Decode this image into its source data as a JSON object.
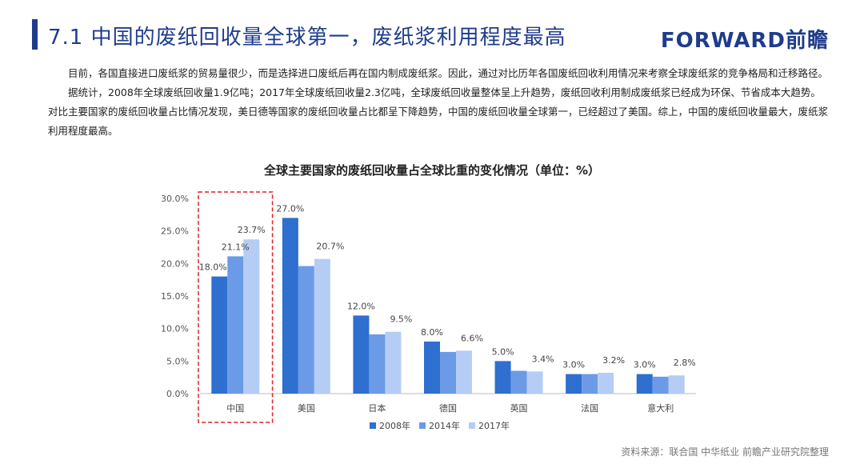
{
  "header": {
    "title": "7.1 中国的废纸回收量全球第一，废纸浆利用程度最高",
    "logo_text": "FORWARD前瞻"
  },
  "paragraphs": [
    "目前，各国直接进口废纸浆的贸易量很少，而是选择进口废纸后再在国内制成废纸浆。因此，通过对比历年各国废纸回收利用情况来考察全球废纸浆的竞争格局和迁移路径。",
    "据统计，2008年全球废纸回收量1.9亿吨；2017年全球废纸回收量2.3亿吨，全球废纸回收量整体呈上升趋势，废纸回收利用制成废纸浆已经成为环保、节省成本大趋势。对比主要国家的废纸回收量占比情况发现，美日德等国家的废纸回收量占比都呈下降趋势，中国的废纸回收量全球第一，已经超过了美国。综上，中国的废纸回收量最大，废纸浆利用程度最高。"
  ],
  "chart_data": {
    "type": "bar",
    "title": "全球主要国家的废纸回收量占全球比重的变化情况（单位：%）",
    "categories": [
      "中国",
      "美国",
      "日本",
      "德国",
      "英国",
      "法国",
      "意大利"
    ],
    "series": [
      {
        "name": "2008年",
        "values": [
          18.0,
          27.0,
          12.0,
          8.0,
          5.0,
          3.0,
          3.0
        ],
        "color": "#2e6fd0"
      },
      {
        "name": "2014年",
        "values": [
          21.1,
          19.6,
          9.1,
          6.4,
          3.5,
          3.0,
          2.6
        ],
        "color": "#6b9be6"
      },
      {
        "name": "2017年",
        "values": [
          23.7,
          20.7,
          9.5,
          6.6,
          3.4,
          3.2,
          2.8
        ],
        "color": "#b5cdf5"
      }
    ],
    "data_labels": [
      [
        "18.0%",
        "21.1%",
        "23.7%"
      ],
      [
        "27.0%",
        "",
        "20.7%"
      ],
      [
        "12.0%",
        "",
        "9.5%"
      ],
      [
        "8.0%",
        "",
        "6.6%"
      ],
      [
        "5.0%",
        "",
        "3.4%"
      ],
      [
        "3.0%",
        "",
        "3.2%"
      ],
      [
        "3.0%",
        "",
        "2.8%"
      ]
    ],
    "yticks": [
      "0.0%",
      "5.0%",
      "10.0%",
      "15.0%",
      "20.0%",
      "25.0%",
      "30.0%"
    ],
    "ylim": [
      0,
      30
    ],
    "highlight_category": "中国",
    "highlight_color": "#e02020",
    "legend_position": "bottom",
    "grid": false
  },
  "source": "资料来源：联合国 中华纸业 前瞻产业研究院整理"
}
